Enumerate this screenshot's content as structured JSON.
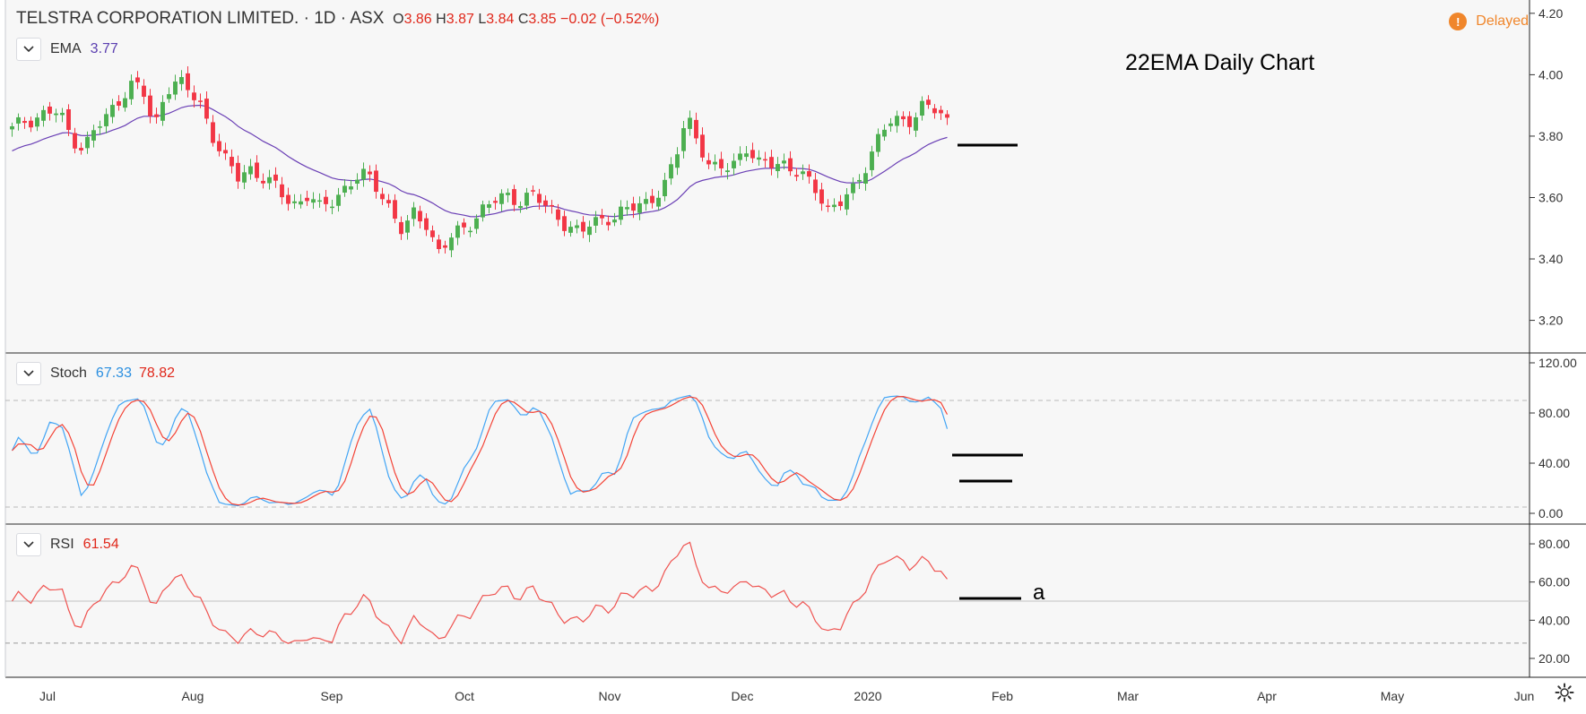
{
  "header": {
    "symbol": "TELSTRA CORPORATION LIMITED.",
    "sep1": "·",
    "interval": "1D",
    "sep2": "·",
    "exchange": "ASX",
    "o_key": "O",
    "o_val": "3.86",
    "h_key": "H",
    "h_val": "3.87",
    "l_key": "L",
    "l_val": "3.84",
    "c_key": "C",
    "c_val": "3.85",
    "change": "−0.02 (−0.52%)",
    "delayed_icon": "!",
    "delayed_label": "Delayed"
  },
  "annotations": {
    "title": "22EMA Daily Chart",
    "a_label": "a"
  },
  "colors": {
    "up": "#4caf50",
    "down": "#f23645",
    "ema": "#6a3fb5",
    "stoch_k": "#42a5f5",
    "stoch_d": "#f44336",
    "rsi": "#ef5350",
    "value_red": "#e0281b"
  },
  "chart_data": [
    {
      "type": "candlestick",
      "legend": {
        "name": "EMA",
        "value": "3.77"
      },
      "y_ticks": [
        "4.20",
        "4.00",
        "3.80",
        "3.60",
        "3.40",
        "3.20"
      ],
      "ylim": [
        3.12,
        4.22
      ],
      "x_tick_labels": [
        "Jul",
        "Aug",
        "Sep",
        "Oct",
        "Nov",
        "Dec",
        "2020",
        "Feb",
        "Mar",
        "Apr",
        "May",
        "Jun"
      ],
      "price_anchors": [
        [
          "Jul",
          3.82
        ],
        [
          "Jul",
          3.85
        ],
        [
          "Jul",
          3.86
        ],
        [
          "Jul",
          3.88
        ],
        [
          "Jul",
          3.87
        ],
        [
          "Jul",
          3.8
        ],
        [
          "Jul",
          3.76
        ],
        [
          "Jul",
          3.82
        ],
        [
          "Jul",
          3.86
        ],
        [
          "Aug",
          3.92
        ],
        [
          "Aug",
          3.97
        ],
        [
          "Aug",
          3.95
        ],
        [
          "Aug",
          3.82
        ],
        [
          "Aug",
          3.96
        ],
        [
          "Aug",
          3.98
        ],
        [
          "Aug",
          3.94
        ],
        [
          "Aug",
          3.9
        ],
        [
          "Aug",
          3.8
        ],
        [
          "Aug",
          3.72
        ],
        [
          "Aug",
          3.66
        ],
        [
          "Aug",
          3.7
        ],
        [
          "Aug",
          3.67
        ],
        [
          "Sep",
          3.64
        ],
        [
          "Sep",
          3.6
        ],
        [
          "Sep",
          3.58
        ],
        [
          "Sep",
          3.61
        ],
        [
          "Sep",
          3.56
        ],
        [
          "Sep",
          3.59
        ],
        [
          "Sep",
          3.63
        ],
        [
          "Sep",
          3.66
        ],
        [
          "Sep",
          3.67
        ],
        [
          "Sep",
          3.63
        ],
        [
          "Sep",
          3.56
        ],
        [
          "Sep",
          3.48
        ],
        [
          "Sep",
          3.55
        ],
        [
          "Oct",
          3.52
        ],
        [
          "Oct",
          3.42
        ],
        [
          "Oct",
          3.46
        ],
        [
          "Oct",
          3.5
        ],
        [
          "Oct",
          3.53
        ],
        [
          "Oct",
          3.57
        ],
        [
          "Oct",
          3.59
        ],
        [
          "Oct",
          3.61
        ],
        [
          "Oct",
          3.59
        ],
        [
          "Oct",
          3.61
        ],
        [
          "Oct",
          3.57
        ],
        [
          "Oct",
          3.55
        ],
        [
          "Nov",
          3.5
        ],
        [
          "Nov",
          3.48
        ],
        [
          "Nov",
          3.52
        ],
        [
          "Nov",
          3.54
        ],
        [
          "Nov",
          3.53
        ],
        [
          "Nov",
          3.56
        ],
        [
          "Nov",
          3.58
        ],
        [
          "Nov",
          3.6
        ],
        [
          "Nov",
          3.62
        ],
        [
          "Nov",
          3.72
        ],
        [
          "Nov",
          3.88
        ],
        [
          "Dec",
          3.78
        ],
        [
          "Dec",
          3.68
        ],
        [
          "Dec",
          3.7
        ],
        [
          "Dec",
          3.72
        ],
        [
          "Dec",
          3.76
        ],
        [
          "Dec",
          3.7
        ],
        [
          "Dec",
          3.72
        ],
        [
          "Dec",
          3.72
        ],
        [
          "Dec",
          3.68
        ],
        [
          "Dec",
          3.66
        ],
        [
          "Dec",
          3.63
        ],
        [
          "Dec",
          3.56
        ],
        [
          "Dec",
          3.58
        ],
        [
          "Dec",
          3.62
        ],
        [
          "2020",
          3.7
        ],
        [
          "2020",
          3.78
        ],
        [
          "2020",
          3.84
        ],
        [
          "2020",
          3.85
        ],
        [
          "2020",
          3.86
        ],
        [
          "2020",
          3.9
        ],
        [
          "2020",
          3.88
        ],
        [
          "2020",
          3.85
        ]
      ],
      "ema_last": 3.77
    },
    {
      "type": "line",
      "legend": {
        "name": "Stoch",
        "k_value": "67.33",
        "d_value": "78.82"
      },
      "y_ticks": [
        "120.00",
        "80.00",
        "40.00",
        "0.00"
      ],
      "ylim": [
        -5,
        125
      ],
      "bands": [
        90,
        5
      ],
      "k_last": 67.33,
      "d_last": 78.82
    },
    {
      "type": "line",
      "legend": {
        "name": "RSI",
        "value": "61.54"
      },
      "y_ticks": [
        "80.00",
        "60.00",
        "40.00",
        "20.00"
      ],
      "ylim": [
        12,
        88
      ],
      "bands": [
        50,
        28
      ],
      "rsi_last": 61.54
    }
  ]
}
